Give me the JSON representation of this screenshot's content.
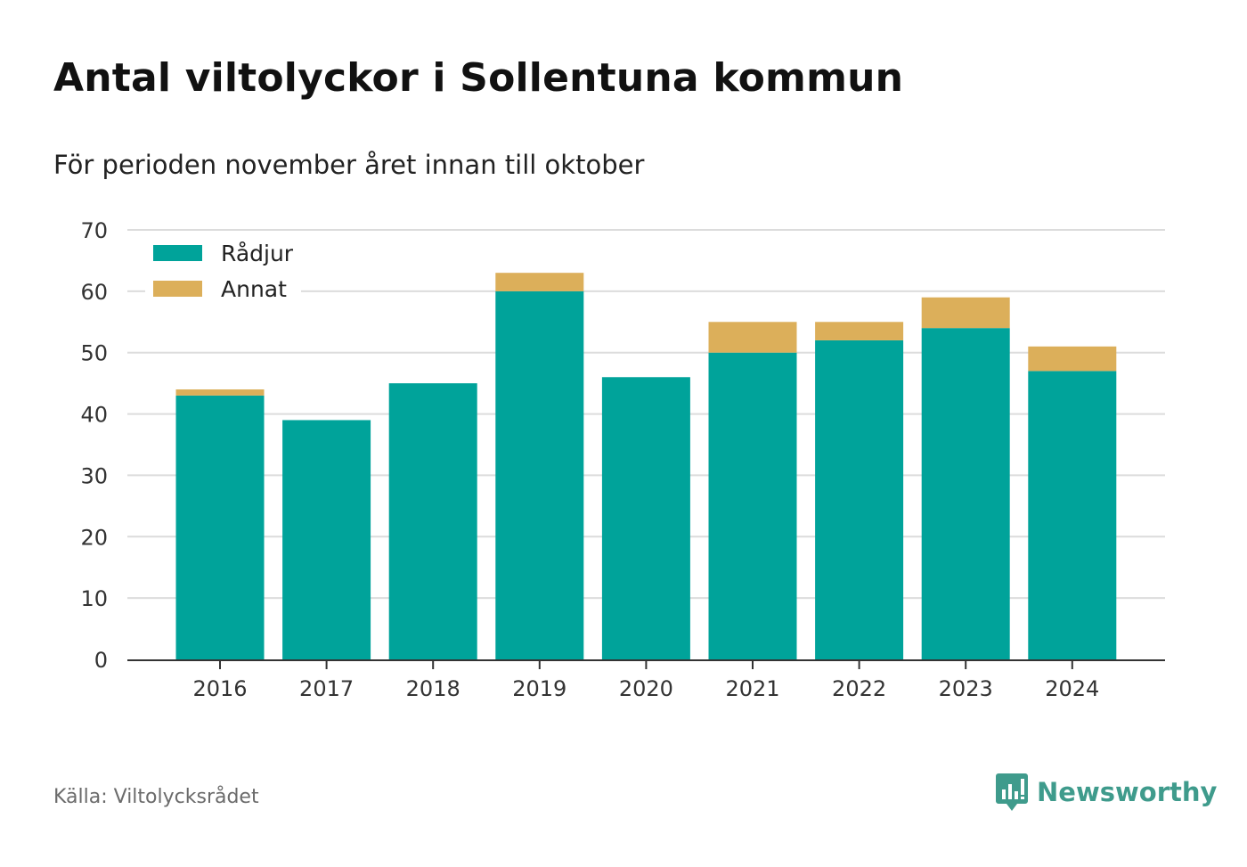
{
  "title": "Antal viltolyckor i Sollentuna kommun",
  "subtitle": "För perioden november året innan till oktober",
  "source": "Källa: Viltolycksrådet",
  "brand": {
    "name": "Newsworthy",
    "icon": "newsworthy-logo-icon",
    "color": "#3f9b8c"
  },
  "chart_data": {
    "type": "bar",
    "stacked": true,
    "categories": [
      "2016",
      "2017",
      "2018",
      "2019",
      "2020",
      "2021",
      "2022",
      "2023",
      "2024"
    ],
    "series": [
      {
        "name": "Rådjur",
        "color": "#00a39a",
        "values": [
          43,
          39,
          45,
          60,
          46,
          50,
          52,
          54,
          47
        ]
      },
      {
        "name": "Annat",
        "color": "#dcaf5a",
        "values": [
          1,
          0,
          0,
          3,
          0,
          5,
          3,
          5,
          4
        ]
      }
    ],
    "ylim": [
      0,
      70
    ],
    "yticks": [
      0,
      10,
      20,
      30,
      40,
      50,
      60,
      70
    ],
    "xlabel": "",
    "ylabel": "",
    "grid": true,
    "legend": "top-left"
  }
}
